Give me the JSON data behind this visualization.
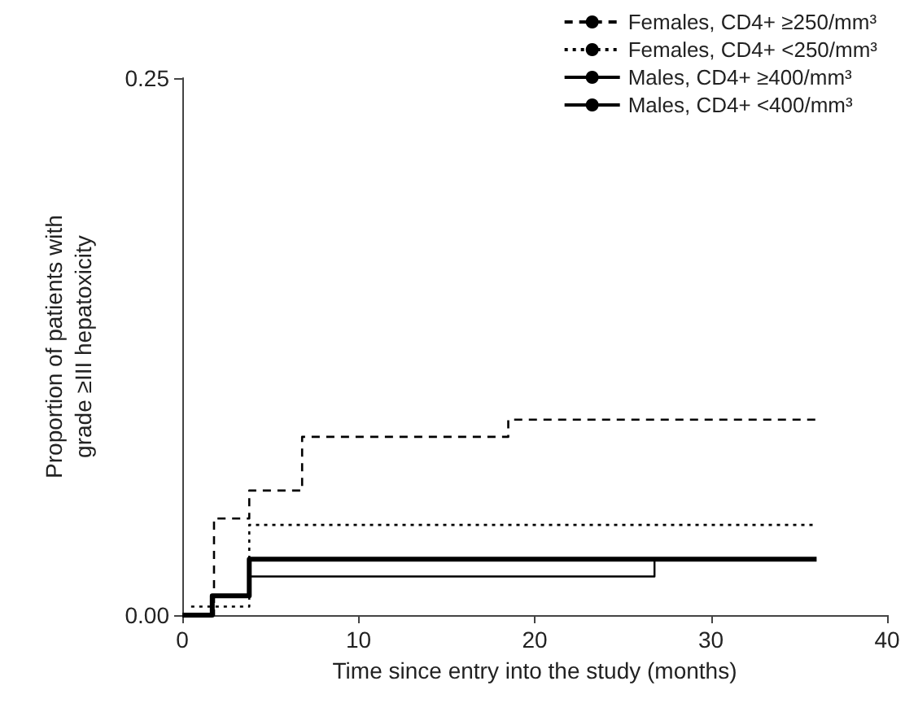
{
  "chart_data": {
    "type": "step",
    "xlabel": "Time since entry into the study (months)",
    "ylabel": "Proportion of patients with\ngrade ≥III hepatoxicity",
    "xlim": [
      0,
      40
    ],
    "xticks": [
      0,
      10,
      20,
      30,
      40
    ],
    "ylim": [
      0,
      0.25
    ],
    "yticks": [
      {
        "value": 0,
        "label": "0.00"
      },
      {
        "value": 0.25,
        "label": "0.25"
      }
    ],
    "grid": false,
    "legend": "top right",
    "marker": "none",
    "series": [
      {
        "name": "Females, CD4+ ≥250/mm³",
        "color": "#000000",
        "line_style": "dashed",
        "x": [
          0,
          1.8,
          3.8,
          6.8,
          18.5,
          36
        ],
        "values": [
          0,
          0.045,
          0.058,
          0.083,
          0.091,
          0.091
        ]
      },
      {
        "name": "Females, CD4+ <250/mm³",
        "color": "#000000",
        "line_style": "dotted",
        "x": [
          0.5,
          3.8,
          36
        ],
        "values": [
          0.004,
          0.042,
          0.042
        ]
      },
      {
        "name": "Males, CD4+ ≥400/mm³",
        "color": "#000000",
        "line_style": "solid",
        "x": [
          0,
          1.7,
          3.8,
          36
        ],
        "values": [
          0,
          0.009,
          0.026,
          0.026
        ]
      },
      {
        "name": "Males, CD4+ <400/mm³",
        "color": "#000000",
        "line_style": "solid",
        "x": [
          0,
          1.7,
          3.8,
          26.8,
          26.8
        ],
        "values": [
          0,
          0.009,
          0.018,
          0.018,
          0.026
        ]
      }
    ]
  }
}
